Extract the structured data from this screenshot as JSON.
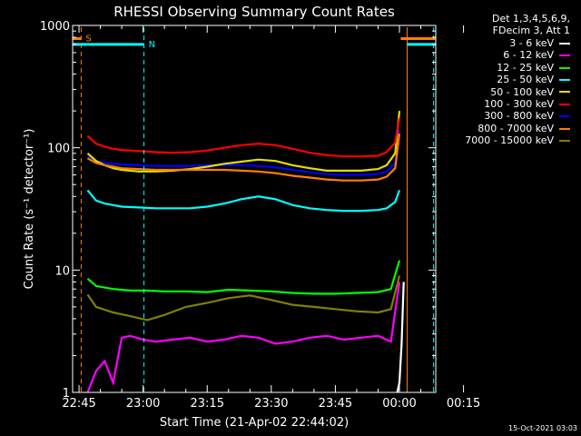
{
  "chart_data": {
    "type": "line",
    "title": "RHESSI Observing Summary Count Rates",
    "xlabel": "Start Time (21-Apr-02 22:44:02)",
    "ylabel": "Count Rate (s⁻¹ detector⁻¹)",
    "yscale": "log",
    "ylim": [
      1,
      1000
    ],
    "y_ticks": [
      {
        "value": 1,
        "label": "1"
      },
      {
        "value": 10,
        "label": "10"
      },
      {
        "value": 100,
        "label": "100"
      },
      {
        "value": 1000,
        "label": "1000"
      }
    ],
    "xlim_minutes": [
      -1.5,
      83.5
    ],
    "x_ticks": [
      {
        "minute": 0,
        "label": "22:45"
      },
      {
        "minute": 15,
        "label": "23:00"
      },
      {
        "minute": 30,
        "label": "23:15"
      },
      {
        "minute": 45,
        "label": "23:30"
      },
      {
        "minute": 60,
        "label": "23:45"
      },
      {
        "minute": 75,
        "label": "00:00"
      },
      {
        "minute": 90,
        "label": "00:15"
      }
    ],
    "grid": false,
    "legend_position": "top-right",
    "legend_header": [
      "Det 1,3,4,5,6,9,",
      "FDecim 3, Att 1"
    ],
    "series": [
      {
        "name": "3 - 6 keV",
        "color": "#ffffff",
        "x": [
          74.5,
          75,
          75.5,
          76
        ],
        "y": [
          1,
          1.2,
          2.5,
          8
        ]
      },
      {
        "name": "6 - 12 keV",
        "color": "#ff00ff",
        "x": [
          2,
          4,
          6,
          8,
          10,
          12,
          15,
          18,
          22,
          26,
          30,
          34,
          38,
          42,
          46,
          50,
          54,
          58,
          62,
          66,
          70,
          73,
          75
        ],
        "y": [
          1,
          1.5,
          1.8,
          1.2,
          2.8,
          2.9,
          2.7,
          2.6,
          2.7,
          2.8,
          2.6,
          2.7,
          2.9,
          2.8,
          2.5,
          2.6,
          2.8,
          2.9,
          2.7,
          2.8,
          2.9,
          2.6,
          8
        ]
      },
      {
        "name": "12 - 25 keV",
        "color": "#00ff00",
        "x": [
          2,
          4,
          8,
          12,
          16,
          20,
          25,
          30,
          35,
          40,
          45,
          50,
          55,
          60,
          65,
          70,
          73,
          75
        ],
        "y": [
          8.5,
          7.4,
          7,
          6.8,
          6.8,
          6.7,
          6.7,
          6.6,
          6.9,
          6.8,
          6.7,
          6.5,
          6.4,
          6.4,
          6.5,
          6.6,
          7,
          12
        ]
      },
      {
        "name": "25 - 50 keV",
        "color": "#00ffff",
        "x": [
          2,
          4,
          6,
          8,
          10,
          14,
          18,
          22,
          26,
          30,
          34,
          38,
          42,
          46,
          50,
          54,
          58,
          62,
          66,
          70,
          72,
          74,
          75
        ],
        "y": [
          45,
          37,
          35,
          34,
          33,
          32.5,
          32,
          32,
          32,
          33,
          35,
          38,
          40,
          38,
          34,
          32,
          31,
          30.5,
          30.5,
          31,
          32,
          36,
          45
        ]
      },
      {
        "name": "50 - 100 keV",
        "color": "#e0e000",
        "x": [
          2,
          4,
          6,
          8,
          10,
          14,
          18,
          22,
          26,
          30,
          34,
          38,
          42,
          46,
          50,
          54,
          58,
          62,
          66,
          70,
          72,
          74,
          75
        ],
        "y": [
          90,
          78,
          72,
          68,
          66,
          64,
          64,
          65,
          67,
          70,
          74,
          77,
          80,
          78,
          72,
          68,
          65,
          65,
          65,
          67,
          72,
          90,
          200
        ]
      },
      {
        "name": "100 - 300 keV",
        "color": "#ff0000",
        "x": [
          2,
          4,
          6,
          8,
          10,
          14,
          18,
          22,
          26,
          30,
          34,
          38,
          42,
          46,
          50,
          54,
          58,
          62,
          66,
          70,
          72,
          74,
          75
        ],
        "y": [
          125,
          108,
          102,
          98,
          96,
          94,
          92,
          91,
          92,
          95,
          100,
          105,
          108,
          105,
          98,
          91,
          87,
          85,
          85,
          86,
          92,
          110,
          175
        ]
      },
      {
        "name": "300 - 800 keV",
        "color": "#0000ff",
        "x": [
          2,
          4,
          6,
          8,
          10,
          14,
          18,
          22,
          26,
          30,
          34,
          38,
          42,
          46,
          50,
          54,
          58,
          62,
          66,
          70,
          72,
          74,
          75
        ],
        "y": [
          85,
          78,
          75,
          74,
          73,
          72,
          71,
          71,
          71,
          72,
          72,
          72,
          71,
          69,
          66,
          63,
          61,
          60,
          60,
          61,
          64,
          75,
          140
        ]
      },
      {
        "name": "800 - 7000 keV",
        "color": "#ff8000",
        "x": [
          2,
          4,
          6,
          8,
          10,
          14,
          18,
          22,
          26,
          30,
          34,
          38,
          42,
          46,
          50,
          54,
          58,
          62,
          66,
          70,
          72,
          74,
          75
        ],
        "y": [
          82,
          75,
          72,
          70,
          68,
          67,
          66,
          66,
          66,
          66,
          66,
          65,
          64,
          62,
          59,
          57,
          55,
          54,
          54,
          55,
          58,
          68,
          130
        ]
      },
      {
        "name": "7000 - 15000 keV",
        "color": "#808000",
        "x": [
          2,
          4,
          8,
          12,
          16,
          20,
          25,
          30,
          35,
          40,
          45,
          50,
          55,
          60,
          65,
          70,
          73,
          75
        ],
        "y": [
          6.3,
          5,
          4.5,
          4.2,
          3.9,
          4.3,
          5,
          5.4,
          5.9,
          6.2,
          5.7,
          5.2,
          5,
          4.8,
          4.6,
          4.5,
          4.8,
          9
        ]
      }
    ],
    "annotations": [
      {
        "text": "S",
        "color": "#ff8000",
        "minute": 0.5,
        "flag_start": -1.5,
        "flag_end": 0.5,
        "level": 780
      },
      {
        "text": "N",
        "color": "#00ffff",
        "minute": 15.2,
        "flag_start": -1.5,
        "flag_end": 15.2,
        "level": 700
      }
    ],
    "markers": [
      {
        "minute": 0.5,
        "style": "dashed",
        "color": "#ff8000"
      },
      {
        "minute": 15.2,
        "style": "dashed",
        "color": "#00ffff"
      },
      {
        "minute": 76.8,
        "style": "solid",
        "color": "#ff8000"
      },
      {
        "minute": 83.0,
        "style": "dashed",
        "color": "#00ffff"
      }
    ],
    "top_bars": [
      {
        "color": "#ff8000",
        "from_minute": 75.3,
        "to_minute": 83.5,
        "level": 780
      },
      {
        "color": "#00ffff",
        "from_minute": 76.8,
        "to_minute": 83.5,
        "level": 700
      }
    ]
  },
  "footer_timestamp": "15-Oct-2021 03:03"
}
